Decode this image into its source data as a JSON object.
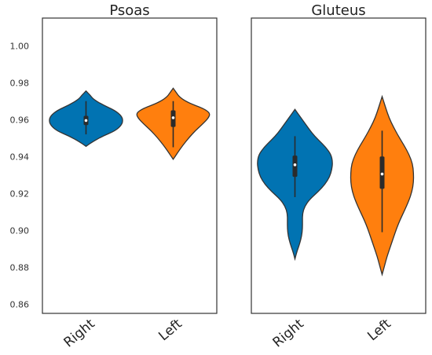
{
  "chart_data": {
    "type": "violin",
    "ylim": [
      0.855,
      1.015
    ],
    "yticks": [
      "0.86",
      "0.88",
      "0.90",
      "0.92",
      "0.94",
      "0.96",
      "0.98",
      "1.00"
    ],
    "ytick_values": [
      0.86,
      0.88,
      0.9,
      0.92,
      0.94,
      0.96,
      0.98,
      1.0
    ],
    "grid": false,
    "colors": {
      "Right": "#0173b2",
      "Left": "#ff7f0e"
    },
    "panels": [
      {
        "title": "Psoas",
        "categories": [
          "Right",
          "Left"
        ],
        "violins": [
          {
            "category": "Right",
            "min": 0.9455,
            "max": 0.9755,
            "q1": 0.957,
            "median": 0.9595,
            "q3": 0.962,
            "whisker_low": 0.952,
            "whisker_high": 0.97,
            "density": [
              [
                0.9455,
                0.0
              ],
              [
                0.948,
                0.18
              ],
              [
                0.951,
                0.45
              ],
              [
                0.954,
                0.8
              ],
              [
                0.957,
                0.96
              ],
              [
                0.9595,
                1.0
              ],
              [
                0.962,
                0.96
              ],
              [
                0.965,
                0.78
              ],
              [
                0.968,
                0.45
              ],
              [
                0.971,
                0.2
              ],
              [
                0.9735,
                0.1
              ],
              [
                0.9755,
                0.0
              ]
            ]
          },
          {
            "category": "Left",
            "min": 0.9385,
            "max": 0.977,
            "q1": 0.956,
            "median": 0.961,
            "q3": 0.965,
            "whisker_low": 0.945,
            "whisker_high": 0.97,
            "density": [
              [
                0.9385,
                0.0
              ],
              [
                0.942,
                0.12
              ],
              [
                0.946,
                0.26
              ],
              [
                0.95,
                0.42
              ],
              [
                0.954,
                0.6
              ],
              [
                0.958,
                0.82
              ],
              [
                0.961,
                0.96
              ],
              [
                0.9635,
                1.0
              ],
              [
                0.966,
                0.82
              ],
              [
                0.969,
                0.42
              ],
              [
                0.972,
                0.18
              ],
              [
                0.9745,
                0.09
              ],
              [
                0.977,
                0.0
              ]
            ]
          }
        ]
      },
      {
        "title": "Gluteus",
        "categories": [
          "Right",
          "Left"
        ],
        "violins": [
          {
            "category": "Right",
            "min": 0.8845,
            "max": 0.9655,
            "q1": 0.929,
            "median": 0.9355,
            "q3": 0.9405,
            "whisker_low": 0.918,
            "whisker_high": 0.951,
            "density": [
              [
                0.8845,
                0.0
              ],
              [
                0.889,
                0.06
              ],
              [
                0.893,
                0.13
              ],
              [
                0.897,
                0.18
              ],
              [
                0.901,
                0.2
              ],
              [
                0.905,
                0.2
              ],
              [
                0.909,
                0.2
              ],
              [
                0.913,
                0.26
              ],
              [
                0.917,
                0.4
              ],
              [
                0.921,
                0.62
              ],
              [
                0.925,
                0.8
              ],
              [
                0.929,
                0.92
              ],
              [
                0.933,
                0.98
              ],
              [
                0.937,
                1.0
              ],
              [
                0.941,
                0.96
              ],
              [
                0.945,
                0.82
              ],
              [
                0.949,
                0.62
              ],
              [
                0.953,
                0.44
              ],
              [
                0.957,
                0.3
              ],
              [
                0.961,
                0.16
              ],
              [
                0.9655,
                0.0
              ]
            ]
          },
          {
            "category": "Left",
            "min": 0.876,
            "max": 0.9725,
            "q1": 0.9225,
            "median": 0.9305,
            "q3": 0.94,
            "whisker_low": 0.899,
            "whisker_high": 0.954,
            "density": [
              [
                0.876,
                0.0
              ],
              [
                0.881,
                0.08
              ],
              [
                0.886,
                0.16
              ],
              [
                0.891,
                0.26
              ],
              [
                0.896,
                0.36
              ],
              [
                0.901,
                0.46
              ],
              [
                0.906,
                0.58
              ],
              [
                0.911,
                0.72
              ],
              [
                0.916,
                0.85
              ],
              [
                0.921,
                0.95
              ],
              [
                0.926,
                1.0
              ],
              [
                0.931,
                1.0
              ],
              [
                0.936,
                0.97
              ],
              [
                0.941,
                0.86
              ],
              [
                0.946,
                0.7
              ],
              [
                0.951,
                0.52
              ],
              [
                0.956,
                0.36
              ],
              [
                0.961,
                0.22
              ],
              [
                0.966,
                0.12
              ],
              [
                0.9725,
                0.0
              ]
            ]
          }
        ]
      }
    ]
  }
}
